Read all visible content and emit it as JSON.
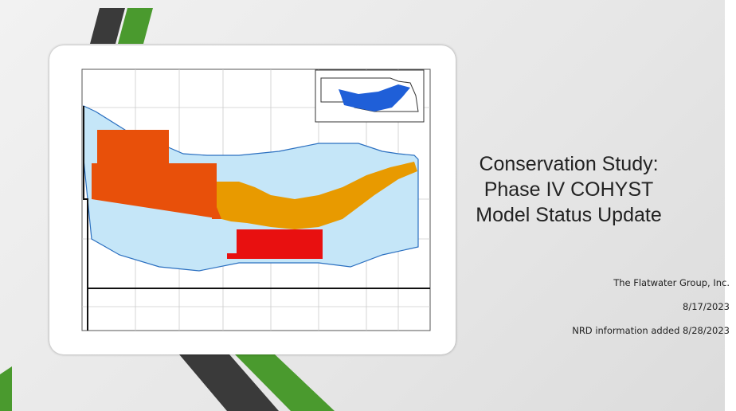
{
  "title": [
    "Conservation Study:",
    "Phase IV COHYST",
    "Model Status Update"
  ],
  "subtitle": [
    "The Flatwater Group, Inc.",
    "8/17/2023",
    "NRD information added 8/28/2023"
  ]
}
